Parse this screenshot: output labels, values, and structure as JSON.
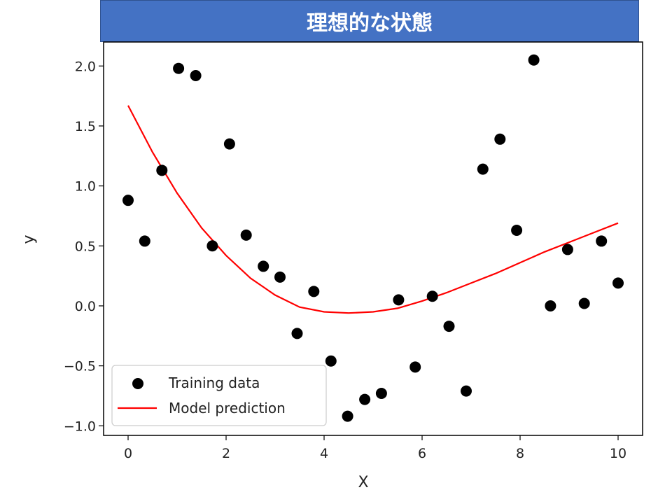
{
  "title": "理想的な状態",
  "chart_data": {
    "type": "scatter",
    "title": "理想的な状態",
    "xlabel": "X",
    "ylabel": "y",
    "xlim": [
      -0.5,
      10.5
    ],
    "ylim": [
      -1.08,
      2.2
    ],
    "xticks": [
      0,
      2,
      4,
      6,
      8,
      10
    ],
    "yticks": [
      -1.0,
      -0.5,
      0.0,
      0.5,
      1.0,
      1.5,
      2.0
    ],
    "xtick_labels": [
      "0",
      "2",
      "4",
      "6",
      "8",
      "10"
    ],
    "ytick_labels": [
      "−1.0",
      "−0.5",
      "0.0",
      "0.5",
      "1.0",
      "1.5",
      "2.0"
    ],
    "legend_position": "lower-left",
    "grid": false,
    "series": [
      {
        "name": "Training data",
        "kind": "scatter",
        "color": "#000000",
        "x": [
          0.0,
          0.34,
          0.69,
          1.03,
          1.38,
          1.72,
          2.07,
          2.41,
          2.76,
          3.1,
          3.45,
          3.79,
          4.14,
          4.48,
          4.83,
          5.17,
          5.52,
          5.86,
          6.21,
          6.55,
          6.9,
          7.24,
          7.59,
          7.93,
          8.28,
          8.62,
          8.97,
          9.31,
          9.66,
          10.0
        ],
        "y": [
          0.88,
          0.54,
          1.13,
          1.98,
          1.92,
          0.5,
          1.35,
          0.59,
          0.33,
          0.24,
          -0.23,
          0.12,
          -0.46,
          -0.92,
          -0.78,
          -0.73,
          0.05,
          -0.51,
          0.08,
          -0.17,
          -0.71,
          1.14,
          1.39,
          0.63,
          2.05,
          0.0,
          0.47,
          0.02,
          0.54,
          0.19
        ]
      },
      {
        "name": "Model prediction",
        "kind": "line",
        "color": "#ff0000",
        "x": [
          0,
          0.5,
          1,
          1.5,
          2,
          2.5,
          3,
          3.5,
          4,
          4.5,
          5,
          5.5,
          6,
          6.5,
          7,
          7.5,
          8,
          8.5,
          9,
          9.5,
          10
        ],
        "y": [
          1.67,
          1.28,
          0.94,
          0.65,
          0.42,
          0.23,
          0.09,
          -0.01,
          -0.05,
          -0.06,
          -0.05,
          -0.02,
          0.04,
          0.11,
          0.19,
          0.27,
          0.36,
          0.45,
          0.53,
          0.61,
          0.69
        ]
      }
    ]
  }
}
